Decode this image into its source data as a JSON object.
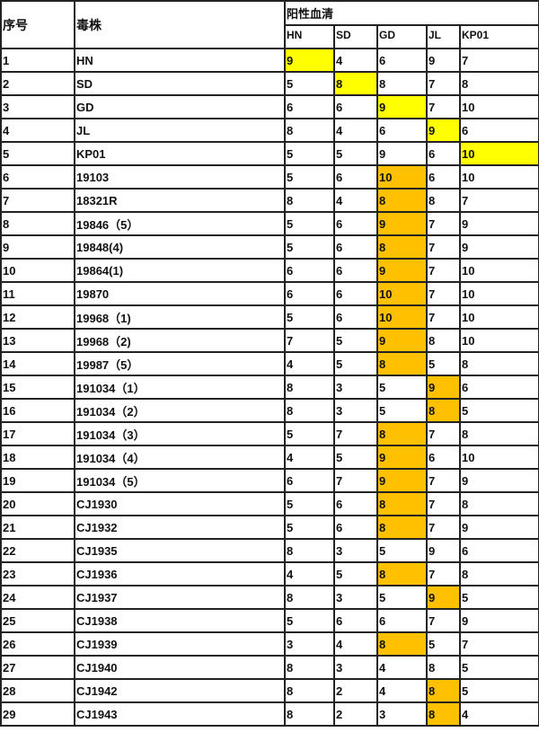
{
  "headers": {
    "index": "序号",
    "strain": "毒株",
    "serum_group": "阳性血清",
    "sera": [
      "HN",
      "SD",
      "GD",
      "JL",
      "KP01"
    ]
  },
  "colors": {
    "yellow": "#ffff00",
    "orange": "#ffc000"
  },
  "rows": [
    {
      "no": "1",
      "strain": "HN",
      "values": [
        "9",
        "4",
        "6",
        "9",
        "7"
      ],
      "highlight": 0,
      "color": "yellow"
    },
    {
      "no": "2",
      "strain": "SD",
      "values": [
        "5",
        "8",
        "8",
        "7",
        "8"
      ],
      "highlight": 1,
      "color": "yellow"
    },
    {
      "no": "3",
      "strain": "GD",
      "values": [
        "6",
        "6",
        "9",
        "7",
        "10"
      ],
      "highlight": 2,
      "color": "yellow"
    },
    {
      "no": "4",
      "strain": "JL",
      "values": [
        "8",
        "4",
        "6",
        "9",
        "6"
      ],
      "highlight": 3,
      "color": "yellow"
    },
    {
      "no": "5",
      "strain": "KP01",
      "values": [
        "5",
        "5",
        "9",
        "6",
        "10"
      ],
      "highlight": 4,
      "color": "yellow"
    },
    {
      "no": "6",
      "strain": "19103",
      "values": [
        "5",
        "6",
        "10",
        "6",
        "10"
      ],
      "highlight": 2,
      "color": "orange"
    },
    {
      "no": "7",
      "strain": "18321R",
      "values": [
        "8",
        "4",
        "8",
        "8",
        "7"
      ],
      "highlight": 2,
      "color": "orange"
    },
    {
      "no": "8",
      "strain": "19846（5）",
      "values": [
        "5",
        "6",
        "9",
        "7",
        "9"
      ],
      "highlight": 2,
      "color": "orange"
    },
    {
      "no": "9",
      "strain": "19848(4)",
      "values": [
        "5",
        "6",
        "8",
        "7",
        "9"
      ],
      "highlight": 2,
      "color": "orange"
    },
    {
      "no": "10",
      "strain": "19864(1)",
      "values": [
        "6",
        "6",
        "9",
        "7",
        "10"
      ],
      "highlight": 2,
      "color": "orange"
    },
    {
      "no": "11",
      "strain": "19870",
      "values": [
        "6",
        "6",
        "10",
        "7",
        "10"
      ],
      "highlight": 2,
      "color": "orange"
    },
    {
      "no": "12",
      "strain": "19968（1)",
      "values": [
        "5",
        "6",
        "10",
        "7",
        "10"
      ],
      "highlight": 2,
      "color": "orange"
    },
    {
      "no": "13",
      "strain": "19968（2)",
      "values": [
        "7",
        "5",
        "9",
        "8",
        "10"
      ],
      "highlight": 2,
      "color": "orange"
    },
    {
      "no": "14",
      "strain": "19987（5）",
      "values": [
        "4",
        "5",
        "8",
        "5",
        "8"
      ],
      "highlight": 2,
      "color": "orange"
    },
    {
      "no": "15",
      "strain": "191034（1）",
      "values": [
        "8",
        "3",
        "5",
        "9",
        "6"
      ],
      "highlight": 3,
      "color": "orange"
    },
    {
      "no": "16",
      "strain": "191034（2）",
      "values": [
        "8",
        "3",
        "5",
        "8",
        "5"
      ],
      "highlight": 3,
      "color": "orange"
    },
    {
      "no": "17",
      "strain": "191034（3）",
      "values": [
        "5",
        "7",
        "8",
        "7",
        "8"
      ],
      "highlight": 2,
      "color": "orange"
    },
    {
      "no": "18",
      "strain": "191034（4）",
      "values": [
        "4",
        "5",
        "9",
        "6",
        "10"
      ],
      "highlight": 2,
      "color": "orange"
    },
    {
      "no": "19",
      "strain": "191034（5）",
      "values": [
        "6",
        "7",
        "9",
        "7",
        "9"
      ],
      "highlight": 2,
      "color": "orange"
    },
    {
      "no": "20",
      "strain": "CJ1930",
      "values": [
        "5",
        "6",
        "8",
        "7",
        "8"
      ],
      "highlight": 2,
      "color": "orange"
    },
    {
      "no": "21",
      "strain": "CJ1932",
      "values": [
        "5",
        "6",
        "8",
        "7",
        "9"
      ],
      "highlight": 2,
      "color": "orange"
    },
    {
      "no": "22",
      "strain": "CJ1935",
      "values": [
        "8",
        "3",
        "5",
        "9",
        "6"
      ],
      "highlight": null,
      "color": null
    },
    {
      "no": "23",
      "strain": "CJ1936",
      "values": [
        "4",
        "5",
        "8",
        "7",
        "8"
      ],
      "highlight": 2,
      "color": "orange"
    },
    {
      "no": "24",
      "strain": "CJ1937",
      "values": [
        "8",
        "3",
        "5",
        "9",
        "5"
      ],
      "highlight": 3,
      "color": "orange"
    },
    {
      "no": "25",
      "strain": "CJ1938",
      "values": [
        "5",
        "6",
        "6",
        "7",
        "9"
      ],
      "highlight": null,
      "color": null
    },
    {
      "no": "26",
      "strain": "CJ1939",
      "values": [
        "3",
        "4",
        "8",
        "5",
        "7"
      ],
      "highlight": 2,
      "color": "orange"
    },
    {
      "no": "27",
      "strain": "CJ1940",
      "values": [
        "8",
        "3",
        "4",
        "8",
        "5"
      ],
      "highlight": null,
      "color": null
    },
    {
      "no": "28",
      "strain": "CJ1942",
      "values": [
        "8",
        "2",
        "4",
        "8",
        "5"
      ],
      "highlight": 3,
      "color": "orange"
    },
    {
      "no": "29",
      "strain": "CJ1943",
      "values": [
        "8",
        "2",
        "3",
        "8",
        "4"
      ],
      "highlight": 3,
      "color": "orange"
    }
  ]
}
